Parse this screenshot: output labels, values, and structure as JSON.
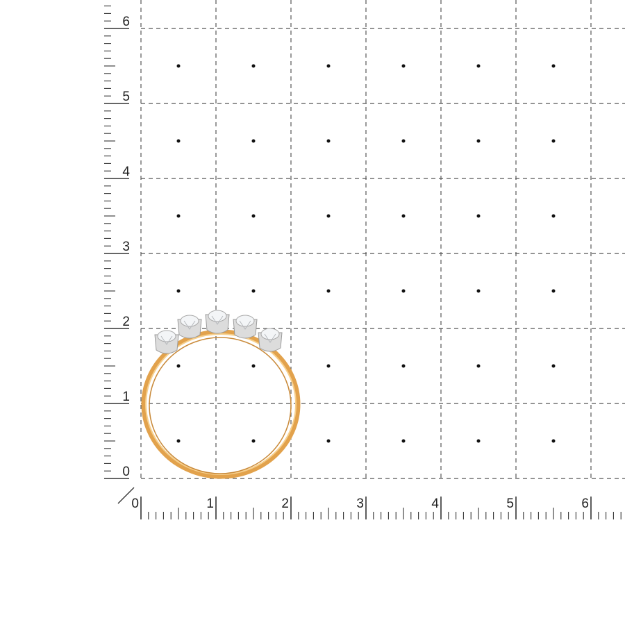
{
  "x_axis": {
    "labels": [
      "0",
      "1",
      "2",
      "3",
      "4",
      "5",
      "6"
    ],
    "minor_divisions": 10
  },
  "y_axis": {
    "labels": [
      "0",
      "1",
      "2",
      "3",
      "4",
      "5",
      "6"
    ],
    "minor_divisions": 10
  },
  "grid": {
    "dashed": true,
    "center_dots": true
  },
  "product": {
    "type": "ring",
    "stones": 5,
    "metal_color": "#e8a94f",
    "setting_color": "#d9d9d9"
  },
  "colors": {
    "grid": "#555555",
    "ruler": "#333333"
  }
}
